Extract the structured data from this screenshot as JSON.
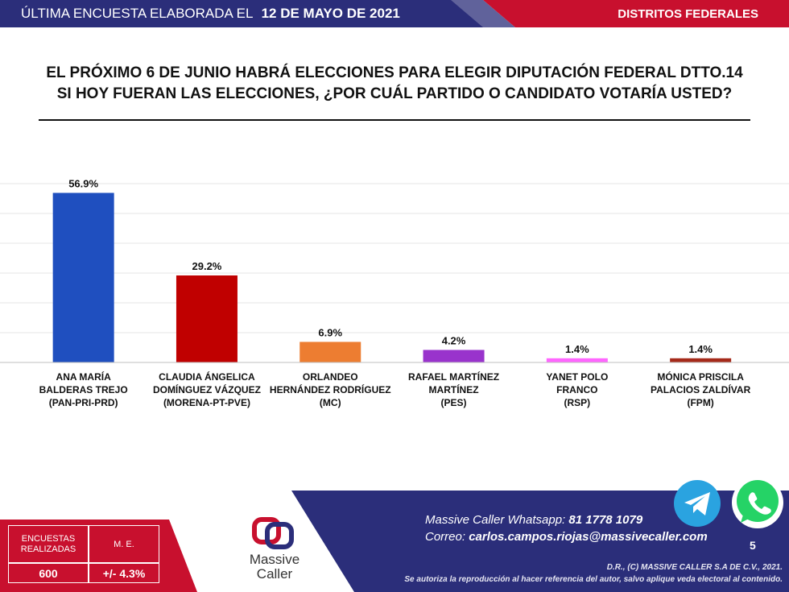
{
  "header": {
    "survey_prefix": "ÚLTIMA ENCUESTA ELABORADA EL",
    "survey_date": "12 DE MAYO DE 2021",
    "section": "DISTRITOS FEDERALES",
    "colors": {
      "navy": "#2b2e7a",
      "red": "#c8102e"
    }
  },
  "title": {
    "line1": "EL PRÓXIMO 6 DE JUNIO HABRÁ ELECCIONES PARA ELEGIR DIPUTACIÓN FEDERAL DTTO.14",
    "line2": "SI HOY FUERAN LAS ELECCIONES, ¿POR CUÁL PARTIDO O CANDIDATO VOTARÍA USTED?"
  },
  "chart_data": {
    "type": "bar",
    "categories": [
      [
        "ANA MARÍA",
        "BALDERAS TREJO",
        "(PAN-PRI-PRD)"
      ],
      [
        "CLAUDIA ÁNGELICA",
        "DOMÍNGUEZ VÁZQUEZ",
        "(MORENA-PT-PVE)"
      ],
      [
        "ORLANDEO",
        "HERNÁNDEZ RODRÍGUEZ",
        "(MC)"
      ],
      [
        "RAFAEL MARTÍNEZ",
        "MARTÍNEZ",
        "(PES)"
      ],
      [
        "YANET POLO",
        "FRANCO",
        "(RSP)"
      ],
      [
        "MÓNICA PRISCILA",
        "PALACIOS ZALDÍVAR",
        "(FPM)"
      ]
    ],
    "values": [
      56.9,
      29.2,
      6.9,
      4.2,
      1.4,
      1.4
    ],
    "value_labels": [
      "56.9%",
      "29.2%",
      "6.9%",
      "4.2%",
      "1.4%",
      "1.4%"
    ],
    "colors": [
      "#1f4fbf",
      "#c00000",
      "#ed7d31",
      "#9933cc",
      "#ff66ff",
      "#a52a1a"
    ],
    "ylim": [
      0,
      60
    ],
    "grid": true
  },
  "footer": {
    "stats": {
      "surveys_label": "ENCUESTAS REALIZADAS",
      "surveys_value": "600",
      "margin_label": "M. E.",
      "margin_value": "+/- 4.3%"
    },
    "logo": {
      "word1": "Massive",
      "word2": "Caller"
    },
    "contact": {
      "whatsapp_label": "Massive Caller Whatsapp:",
      "whatsapp_value": "81 1778 1079",
      "email_label": "Correo:",
      "email_value": "carlos.campos.riojas@massivecaller.com"
    },
    "page_number": "5",
    "copyright1": "D.R., (C) MASSIVE CALLER S.A DE C.V., 2021.",
    "copyright2": "Se autoriza la reproducción al hacer referencia del autor, salvo aplique veda electoral al contenido.",
    "icons": [
      "telegram-icon",
      "whatsapp-icon"
    ]
  }
}
